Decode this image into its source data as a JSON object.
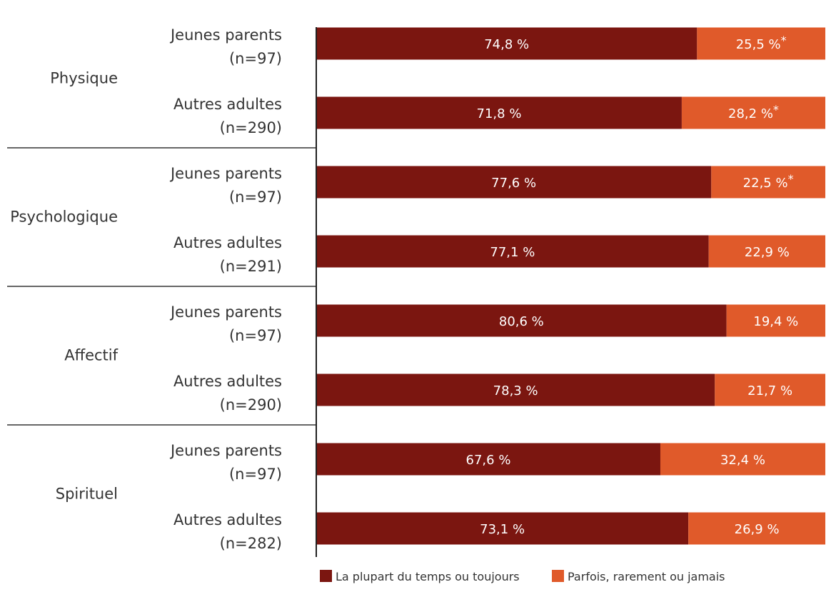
{
  "chart_data": {
    "type": "bar",
    "stacked": true,
    "orientation": "horizontal",
    "title": "",
    "xlim": [
      0,
      100
    ],
    "groups": [
      {
        "label": "Physique",
        "bars": [
          {
            "label": [
              "Jeunes parents",
              "(n=97)"
            ],
            "values": [
              74.8,
              25.5
            ],
            "value_labels": [
              "74,8 %",
              "25,5 %*"
            ]
          },
          {
            "label": [
              "Autres adultes",
              "(n=290)"
            ],
            "values": [
              71.8,
              28.2
            ],
            "value_labels": [
              "71,8 %",
              "28,2 %*"
            ]
          }
        ]
      },
      {
        "label": "Psychologique",
        "bars": [
          {
            "label": [
              "Jeunes parents",
              "(n=97)"
            ],
            "values": [
              77.6,
              22.5
            ],
            "value_labels": [
              "77,6 %",
              "22,5 %*"
            ]
          },
          {
            "label": [
              "Autres adultes",
              "(n=291)"
            ],
            "values": [
              77.1,
              22.9
            ],
            "value_labels": [
              "77,1 %",
              "22,9 %"
            ]
          }
        ]
      },
      {
        "label": "Affectif",
        "bars": [
          {
            "label": [
              "Jeunes parents",
              "(n=97)"
            ],
            "values": [
              80.6,
              19.4
            ],
            "value_labels": [
              "80,6 %",
              "19,4 %"
            ]
          },
          {
            "label": [
              "Autres adultes",
              "(n=290)"
            ],
            "values": [
              78.3,
              21.7
            ],
            "value_labels": [
              "78,3 %",
              "21,7 %"
            ]
          }
        ]
      },
      {
        "label": "Spirituel",
        "bars": [
          {
            "label": [
              "Jeunes parents",
              "(n=97)"
            ],
            "values": [
              67.6,
              32.4
            ],
            "value_labels": [
              "67,6 %",
              "32,4 %"
            ]
          },
          {
            "label": [
              "Autres adultes",
              "(n=282)"
            ],
            "values": [
              73.1,
              26.9
            ],
            "value_labels": [
              "73,1 %",
              "26,9 %"
            ]
          }
        ]
      }
    ],
    "series": [
      {
        "name": "La plupart du temps ou toujours",
        "color": "#7b1610"
      },
      {
        "name": "Parfois, rarement ou jamais",
        "color": "#e05a2a"
      }
    ],
    "legend_position": "bottom",
    "grid": false
  }
}
